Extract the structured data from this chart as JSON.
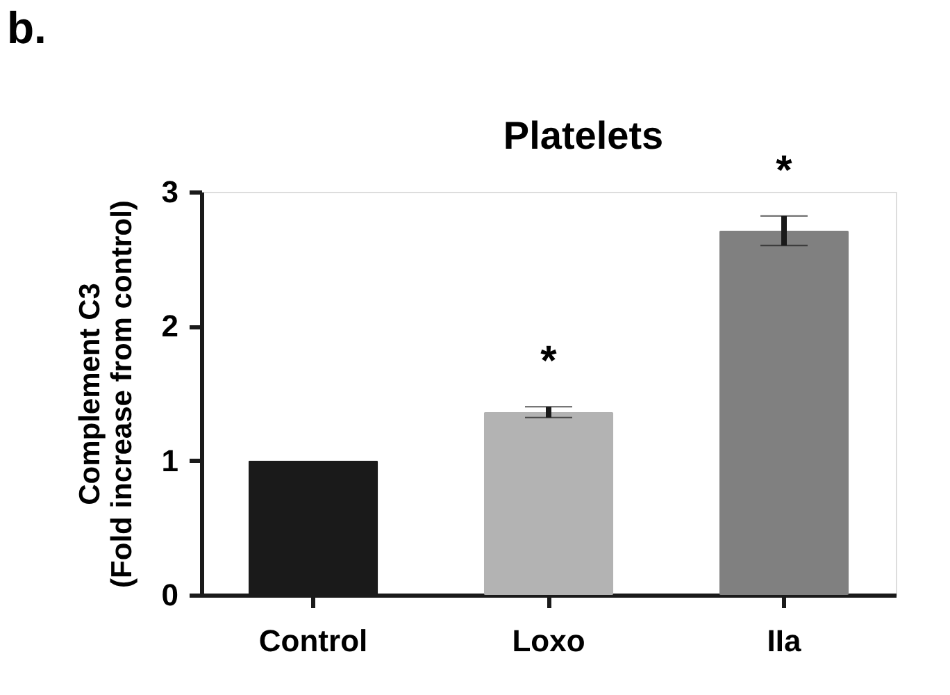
{
  "chart_data": {
    "type": "bar",
    "title": "Platelets",
    "ylabel": "Complement C3\n(Fold increase from control)",
    "categories": [
      "Control",
      "Loxo",
      "IIa"
    ],
    "values": [
      1.0,
      1.36,
      2.71
    ],
    "errors": [
      null,
      0.04,
      0.11
    ],
    "colors": [
      "#1a1a1a",
      "#b3b3b3",
      "#808080"
    ],
    "ylim": [
      0,
      3
    ],
    "yticks": [
      0,
      1,
      2,
      3
    ],
    "grid": false,
    "legend": false,
    "annotations": [
      "b.",
      {
        "text": "*",
        "x": "Loxo",
        "y": 1.4
      },
      {
        "text": "*",
        "x": "IIa",
        "y": 2.82
      }
    ]
  }
}
